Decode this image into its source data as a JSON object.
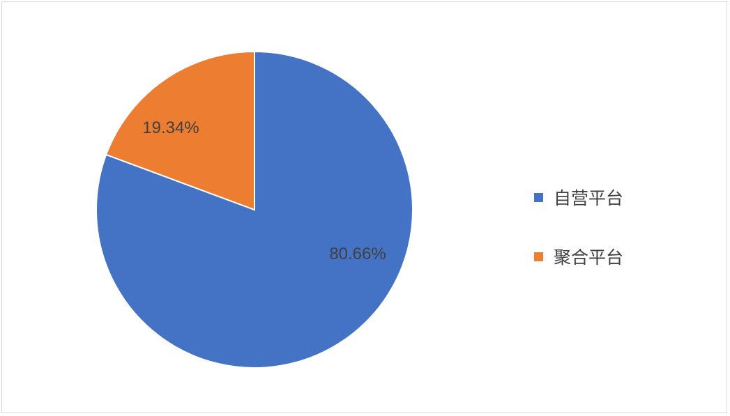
{
  "chart_data": {
    "type": "pie",
    "title": "",
    "categories": [
      "自营平台",
      "聚合平台"
    ],
    "values": [
      80.66,
      19.34
    ],
    "labels": [
      "80.66%",
      "19.34%"
    ],
    "colors": [
      "#4472C4",
      "#ED7D31"
    ],
    "start_angle": "top, clockwise",
    "legend_position": "right"
  }
}
